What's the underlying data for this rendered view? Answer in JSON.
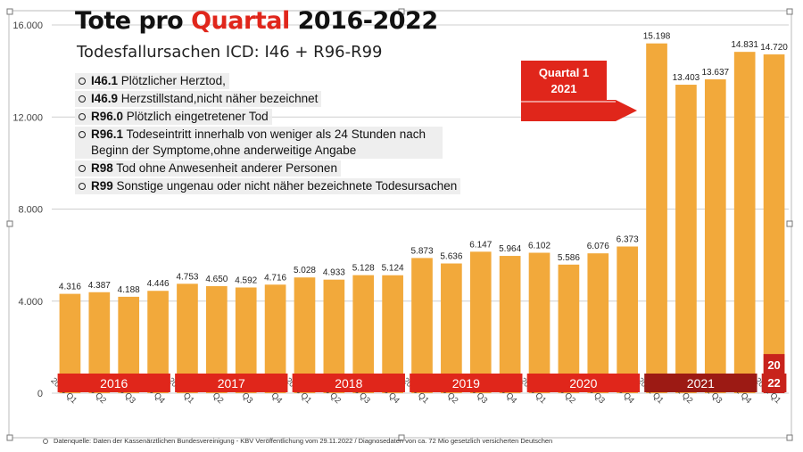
{
  "title": {
    "part1": "Tote pro",
    "accent": "Quartal",
    "part2": "2016-2022"
  },
  "subtitle": "Todesfallursachen ICD: I46 + R96-R99",
  "icd_items": [
    {
      "code": "I46.1",
      "text": " Plötzlicher Herztod,"
    },
    {
      "code": "I46.9",
      "text": " Herzstillstand,nicht näher bezeichnet"
    },
    {
      "code": "R96.0",
      "text": " Plötzlich eingetretener Tod"
    },
    {
      "code": "R96.1",
      "text": " Todeseintritt innerhalb von weniger als 24 Stunden nach Beginn der Symptome,ohne anderweitige Angabe"
    },
    {
      "code": "R98",
      "text": " Tod ohne Anwesenheit anderer Personen"
    },
    {
      "code": "R99",
      "text": " Sonstige ungenau oder nicht näher bezeichnete Todesursachen"
    }
  ],
  "callout": {
    "line1": "Quartal 1",
    "line2": "2021"
  },
  "footer": "Datenquelle: Daten der Kassenärztlichen Bundesvereinigung - KBV Veröffentlichung vom 29.11.2022 / Diagnosedaten von ca. 72 Mio gesetzlich versicherten Deutschen",
  "colors": {
    "bar": "#f2a93b",
    "bar_highlight_2022": "#c8231c",
    "year_band": "#e0261b",
    "year_band_2021": "#9c1a14",
    "grid": "#cfcfcf"
  },
  "chart_data": {
    "type": "bar",
    "ylim": [
      0,
      16000
    ],
    "yticks": [
      "0",
      "4.000",
      "8.000",
      "12.000",
      "16.000"
    ],
    "ytick_values": [
      0,
      4000,
      8000,
      12000,
      16000
    ],
    "categories": [
      "2016 Q1",
      "2016 Q2",
      "2016 Q3",
      "2016 Q4",
      "2017 Q1",
      "2017 Q2",
      "2017 Q3",
      "2017 Q4",
      "2018 Q1",
      "2018 Q2",
      "2018 Q3",
      "2018 Q4",
      "2019 Q1",
      "2019 Q2",
      "2019 Q3",
      "2019 Q4",
      "2020 Q1",
      "2020 Q2",
      "2020 Q3",
      "2020 Q4",
      "2021 Q1",
      "2021 Q2",
      "2021 Q3",
      "2021 Q4",
      "2022 Q1"
    ],
    "values": [
      4316,
      4387,
      4188,
      4446,
      4753,
      4650,
      4592,
      4716,
      5028,
      4933,
      5128,
      5124,
      5873,
      5636,
      6147,
      5964,
      6102,
      5586,
      6076,
      6373,
      15198,
      13403,
      13637,
      14831,
      14720
    ],
    "value_labels": [
      "4.316",
      "4.387",
      "4.188",
      "4.446",
      "4.753",
      "4.650",
      "4.592",
      "4.716",
      "5.028",
      "4.933",
      "5.128",
      "5.124",
      "5.873",
      "5.636",
      "6.147",
      "5.964",
      "6.102",
      "5.586",
      "6.076",
      "6.373",
      "15.198",
      "13.403",
      "13.637",
      "14.831",
      "14.720"
    ],
    "years": [
      {
        "label": "2016",
        "start": 0,
        "end": 3
      },
      {
        "label": "2017",
        "start": 4,
        "end": 7
      },
      {
        "label": "2018",
        "start": 8,
        "end": 11
      },
      {
        "label": "2019",
        "start": 12,
        "end": 15
      },
      {
        "label": "2020",
        "start": 16,
        "end": 19
      },
      {
        "label": "2021",
        "start": 20,
        "end": 23
      },
      {
        "label": "20 22",
        "start": 24,
        "end": 24
      }
    ],
    "grid": true
  }
}
